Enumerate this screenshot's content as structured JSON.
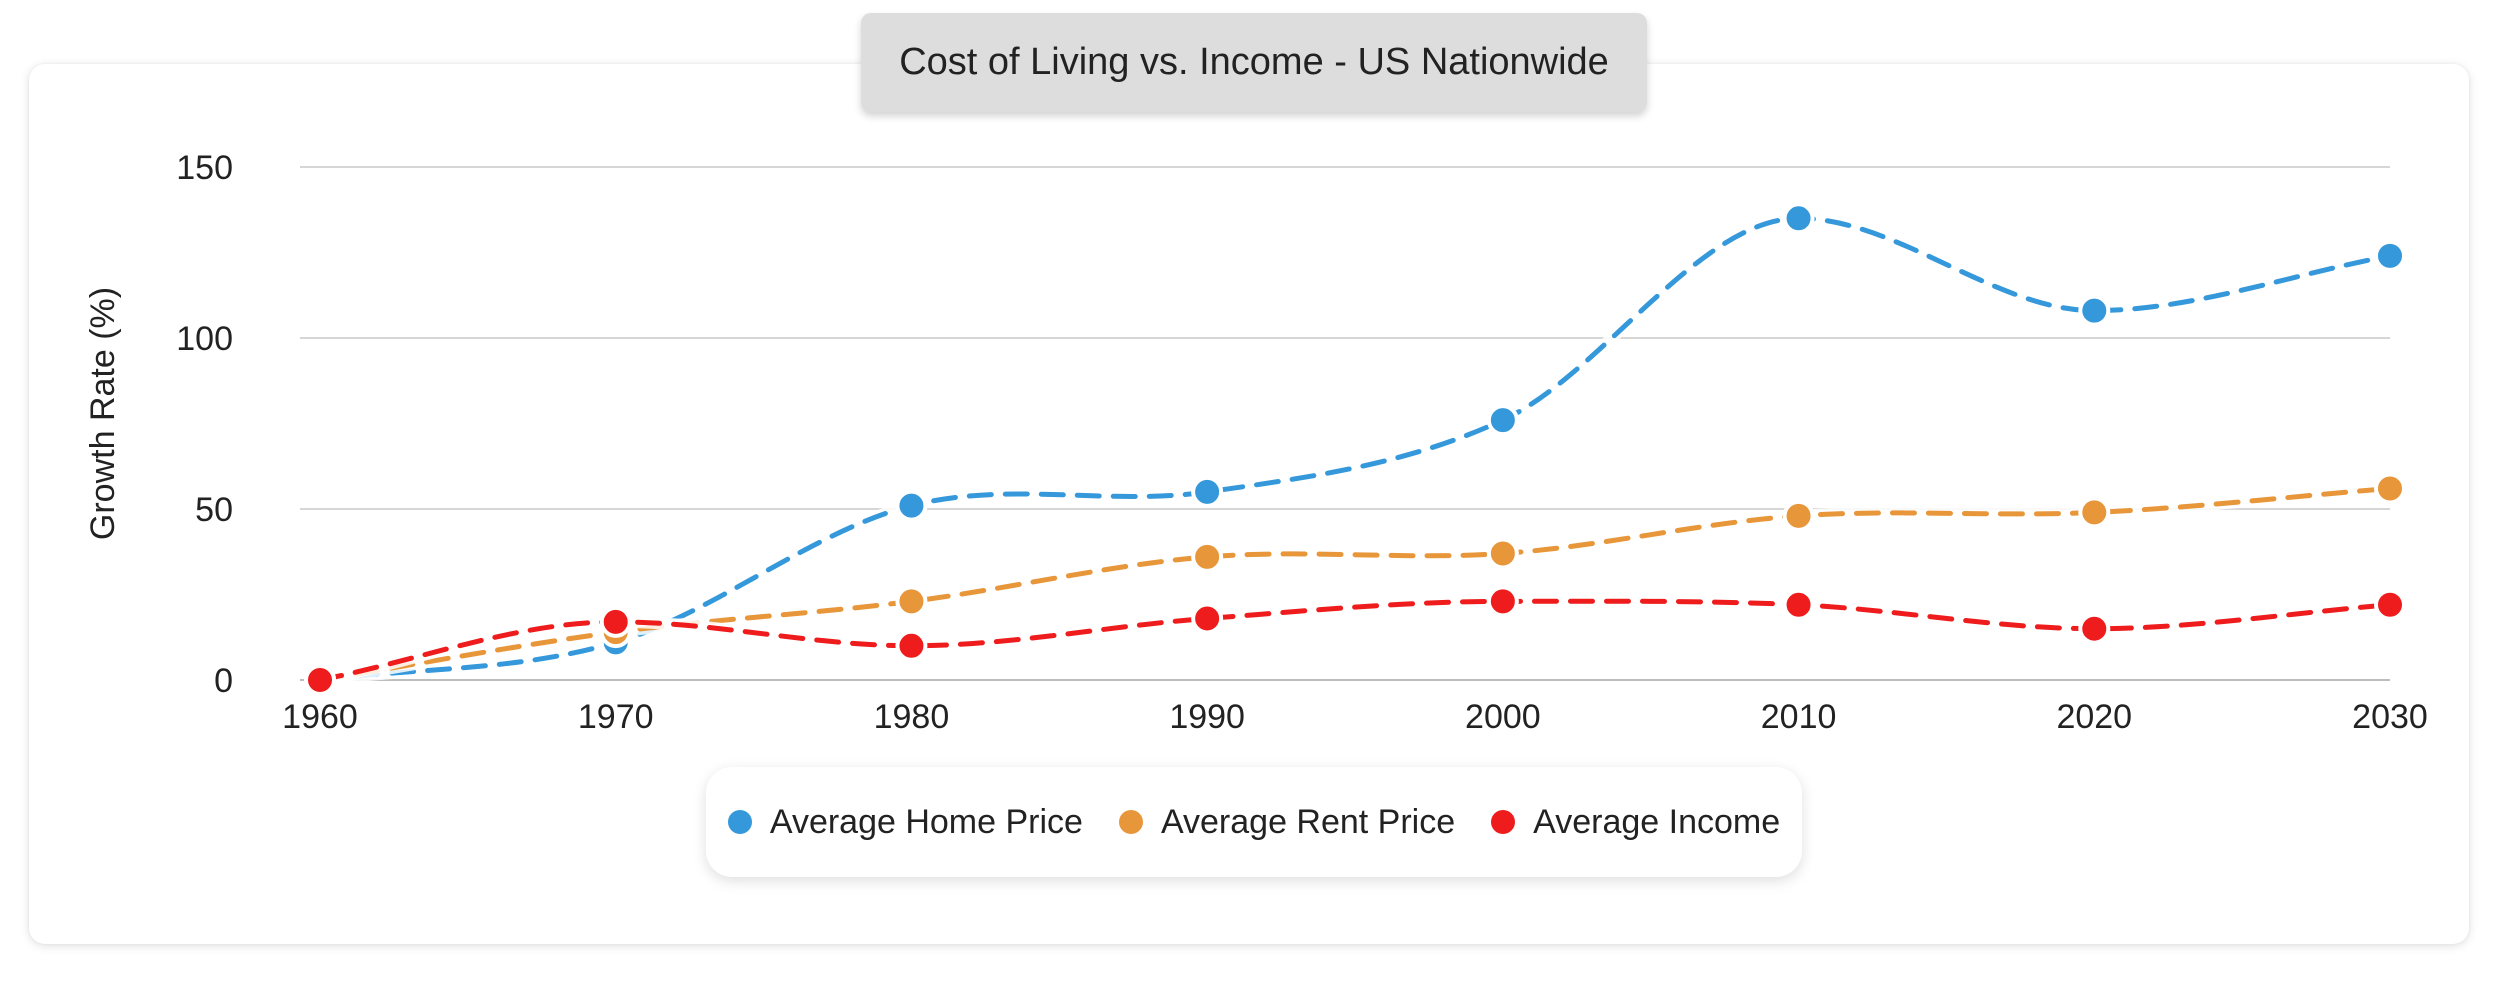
{
  "chart_data": {
    "type": "line",
    "title": "Cost of Living vs. Income - US Nationwide",
    "xlabel": "",
    "ylabel": "Growth Rate (%)",
    "x": [
      1960,
      1970,
      1980,
      1990,
      2000,
      2010,
      2020,
      2030
    ],
    "ylim": [
      0,
      150
    ],
    "yticks": [
      0,
      50,
      100,
      150
    ],
    "grid": true,
    "legend_position": "bottom",
    "line_style": "dashed",
    "series": [
      {
        "name": "Average Home Price",
        "color": "#3498db",
        "values": [
          0,
          11,
          51,
          55,
          76,
          135,
          108,
          124
        ]
      },
      {
        "name": "Average Rent Price",
        "color": "#e8963a",
        "values": [
          0,
          14,
          23,
          36,
          37,
          48,
          49,
          56
        ]
      },
      {
        "name": "Average Income",
        "color": "#ee1c1c",
        "values": [
          0,
          17,
          10,
          18,
          23,
          22,
          15,
          22
        ]
      }
    ]
  }
}
